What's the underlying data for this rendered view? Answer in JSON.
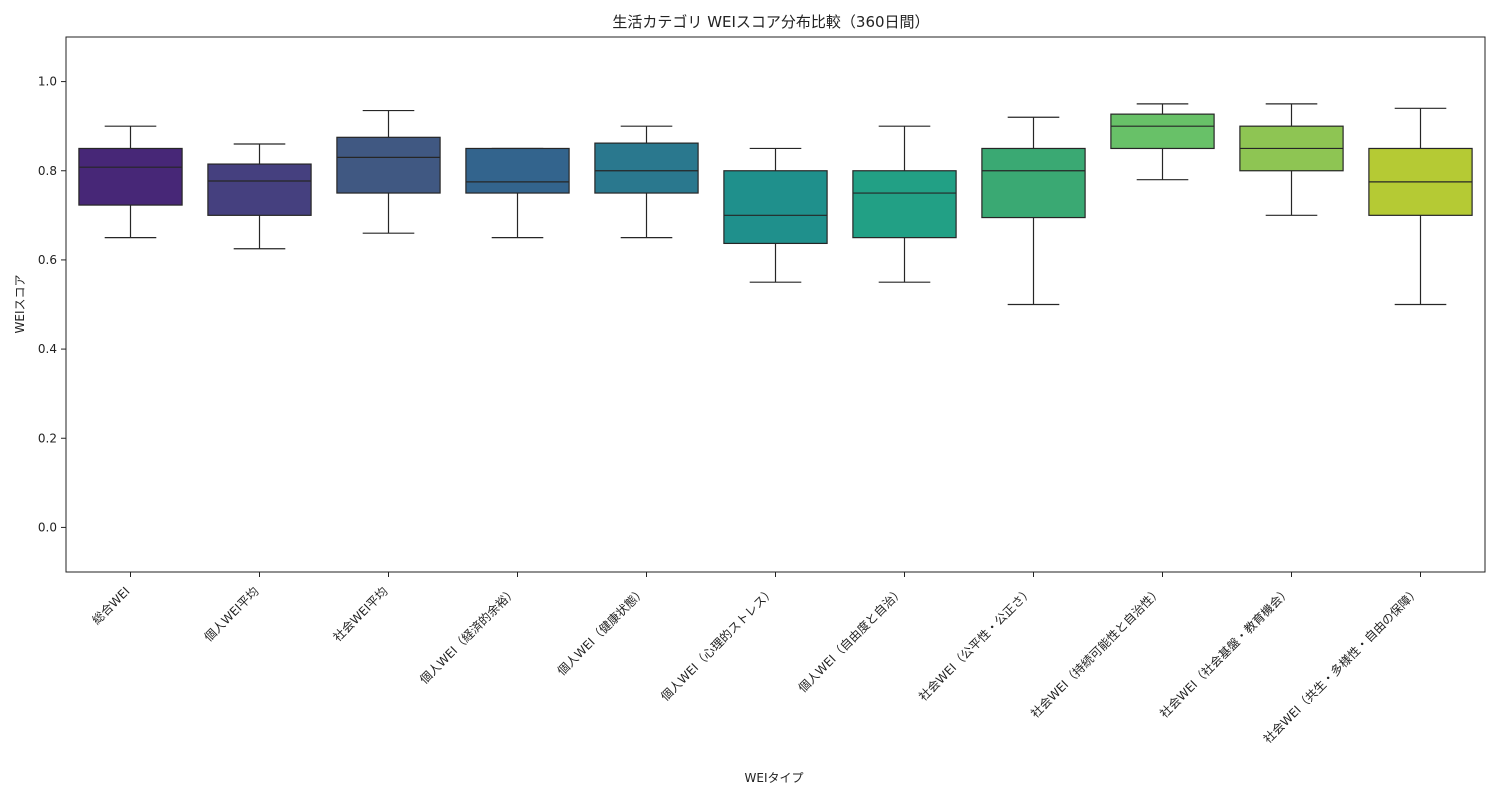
{
  "chart_data": {
    "type": "box",
    "title": "生活カテゴリ WEIスコア分布比較（360日間）",
    "xlabel": "WEIタイプ",
    "ylabel": "WEIスコア",
    "ylim": [
      -0.1,
      1.1
    ],
    "yticks": [
      0.0,
      0.2,
      0.4,
      0.6,
      0.8,
      1.0
    ],
    "ytick_labels": [
      "0.0",
      "0.2",
      "0.4",
      "0.6",
      "0.8",
      "1.0"
    ],
    "grid": false,
    "categories": [
      "総合WEI",
      "個人WEI平均",
      "社会WEI平均",
      "個人WEI（経済的余裕）",
      "個人WEI（健康状態）",
      "個人WEI（心理的ストレス）",
      "個人WEI（自由度と自治）",
      "社会WEI（公平性・公正さ）",
      "社会WEI（持続可能性と自治性）",
      "社会WEI（社会基盤・教育機会）",
      "社会WEI（共生・多様性・自由の保障）"
    ],
    "boxes": [
      {
        "whisker_low": 0.65,
        "q1": 0.723,
        "median": 0.808,
        "q3": 0.85,
        "whisker_high": 0.9
      },
      {
        "whisker_low": 0.625,
        "q1": 0.7,
        "median": 0.777,
        "q3": 0.815,
        "whisker_high": 0.86
      },
      {
        "whisker_low": 0.66,
        "q1": 0.75,
        "median": 0.83,
        "q3": 0.875,
        "whisker_high": 0.935
      },
      {
        "whisker_low": 0.65,
        "q1": 0.75,
        "median": 0.775,
        "q3": 0.85,
        "whisker_high": 0.85
      },
      {
        "whisker_low": 0.65,
        "q1": 0.75,
        "median": 0.8,
        "q3": 0.862,
        "whisker_high": 0.9
      },
      {
        "whisker_low": 0.55,
        "q1": 0.637,
        "median": 0.7,
        "q3": 0.8,
        "whisker_high": 0.85
      },
      {
        "whisker_low": 0.55,
        "q1": 0.65,
        "median": 0.75,
        "q3": 0.8,
        "whisker_high": 0.9
      },
      {
        "whisker_low": 0.5,
        "q1": 0.695,
        "median": 0.8,
        "q3": 0.85,
        "whisker_high": 0.92
      },
      {
        "whisker_low": 0.78,
        "q1": 0.85,
        "median": 0.9,
        "q3": 0.927,
        "whisker_high": 0.95
      },
      {
        "whisker_low": 0.7,
        "q1": 0.8,
        "median": 0.85,
        "q3": 0.9,
        "whisker_high": 0.95
      },
      {
        "whisker_low": 0.5,
        "q1": 0.7,
        "median": 0.775,
        "q3": 0.85,
        "whisker_high": 0.94
      }
    ],
    "colors": [
      "#472777",
      "#45407f",
      "#405882",
      "#33648d",
      "#2a788e",
      "#1f908c",
      "#22a085",
      "#3aa973",
      "#68c168",
      "#8ec553",
      "#b5ca34"
    ],
    "line_color": "#262626"
  }
}
